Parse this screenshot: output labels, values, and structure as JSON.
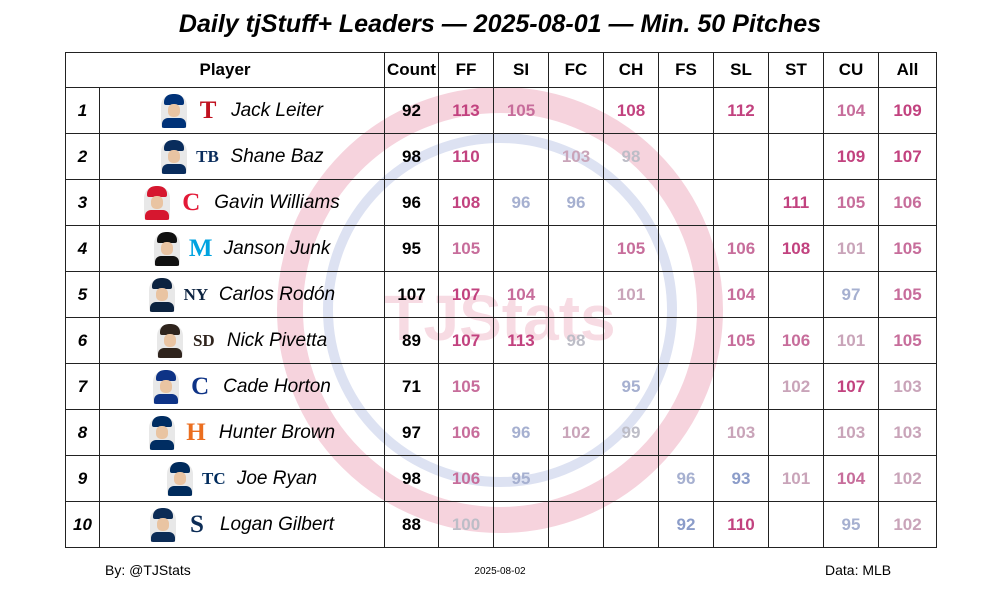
{
  "title": "Daily tjStuff+ Leaders — 2025-08-01 — Min. 50 Pitches",
  "footer": {
    "byline": "By: @TJStats",
    "date": "2025-08-02",
    "source": "Data: MLB"
  },
  "watermark": {
    "text": "TJStats",
    "color": "#f3c8d4"
  },
  "colors": {
    "high": "#c2427f",
    "mid_high": "#c76d9b",
    "mid": "#c9a4b9",
    "neutral": "#bdbdc7",
    "mid_low": "#a6b0d0",
    "low": "#8b9cc9"
  },
  "chart_data": {
    "type": "table",
    "title": "Daily tjStuff+ Leaders — 2025-08-01 — Min. 50 Pitches",
    "columns": [
      "Player",
      "Count",
      "FF",
      "SI",
      "FC",
      "CH",
      "FS",
      "SL",
      "ST",
      "CU",
      "All"
    ],
    "rows": [
      {
        "rank": "1",
        "player": "Jack Leiter",
        "team": "TEX",
        "logo_text": "T",
        "logo_color": "#c0111f",
        "cap_color": "#003278",
        "count": "92",
        "FF": "113",
        "SI": "105",
        "FC": "",
        "CH": "108",
        "FS": "",
        "SL": "112",
        "ST": "",
        "CU": "104",
        "All": "109"
      },
      {
        "rank": "2",
        "player": "Shane Baz",
        "team": "TB",
        "logo_text": "TB",
        "logo_color": "#092c5c",
        "cap_color": "#092c5c",
        "count": "98",
        "FF": "110",
        "SI": "",
        "FC": "103",
        "CH": "98",
        "FS": "",
        "SL": "",
        "ST": "",
        "CU": "109",
        "All": "107"
      },
      {
        "rank": "3",
        "player": "Gavin Williams",
        "team": "CLE",
        "logo_text": "C",
        "logo_color": "#e31937",
        "cap_color": "#d6172f",
        "count": "96",
        "FF": "108",
        "SI": "96",
        "FC": "96",
        "CH": "",
        "FS": "",
        "SL": "",
        "ST": "111",
        "CU": "105",
        "All": "106"
      },
      {
        "rank": "4",
        "player": "Janson Junk",
        "team": "MIA",
        "logo_text": "M",
        "logo_color": "#00a3e0",
        "cap_color": "#111111",
        "count": "95",
        "FF": "105",
        "SI": "",
        "FC": "",
        "CH": "105",
        "FS": "",
        "SL": "106",
        "ST": "108",
        "CU": "101",
        "All": "105"
      },
      {
        "rank": "5",
        "player": "Carlos Rodón",
        "team": "NYY",
        "logo_text": "NY",
        "logo_color": "#0c2340",
        "cap_color": "#0c2340",
        "count": "107",
        "FF": "107",
        "SI": "104",
        "FC": "",
        "CH": "101",
        "FS": "",
        "SL": "104",
        "ST": "",
        "CU": "97",
        "All": "105"
      },
      {
        "rank": "6",
        "player": "Nick Pivetta",
        "team": "SD",
        "logo_text": "SD",
        "logo_color": "#2f241d",
        "cap_color": "#2f241d",
        "count": "89",
        "FF": "107",
        "SI": "113",
        "FC": "98",
        "CH": "",
        "FS": "",
        "SL": "105",
        "ST": "106",
        "CU": "101",
        "All": "105"
      },
      {
        "rank": "7",
        "player": "Cade Horton",
        "team": "CHC",
        "logo_text": "C",
        "logo_color": "#0e3386",
        "cap_color": "#0e3386",
        "count": "71",
        "FF": "105",
        "SI": "",
        "FC": "",
        "CH": "95",
        "FS": "",
        "SL": "",
        "ST": "102",
        "CU": "107",
        "All": "103"
      },
      {
        "rank": "8",
        "player": "Hunter Brown",
        "team": "HOU",
        "logo_text": "H",
        "logo_color": "#eb6e1f",
        "cap_color": "#002d62",
        "count": "97",
        "FF": "106",
        "SI": "96",
        "FC": "102",
        "CH": "99",
        "FS": "",
        "SL": "103",
        "ST": "",
        "CU": "103",
        "All": "103"
      },
      {
        "rank": "9",
        "player": "Joe Ryan",
        "team": "MIN",
        "logo_text": "TC",
        "logo_color": "#002b5c",
        "cap_color": "#002b5c",
        "count": "98",
        "FF": "106",
        "SI": "95",
        "FC": "",
        "CH": "",
        "FS": "96",
        "SL": "93",
        "ST": "101",
        "CU": "104",
        "All": "102"
      },
      {
        "rank": "10",
        "player": "Logan Gilbert",
        "team": "SEA",
        "logo_text": "S",
        "logo_color": "#0c2c56",
        "cap_color": "#0c2c56",
        "count": "88",
        "FF": "100",
        "SI": "",
        "FC": "",
        "CH": "",
        "FS": "92",
        "SL": "110",
        "ST": "",
        "CU": "95",
        "All": "102"
      }
    ]
  }
}
